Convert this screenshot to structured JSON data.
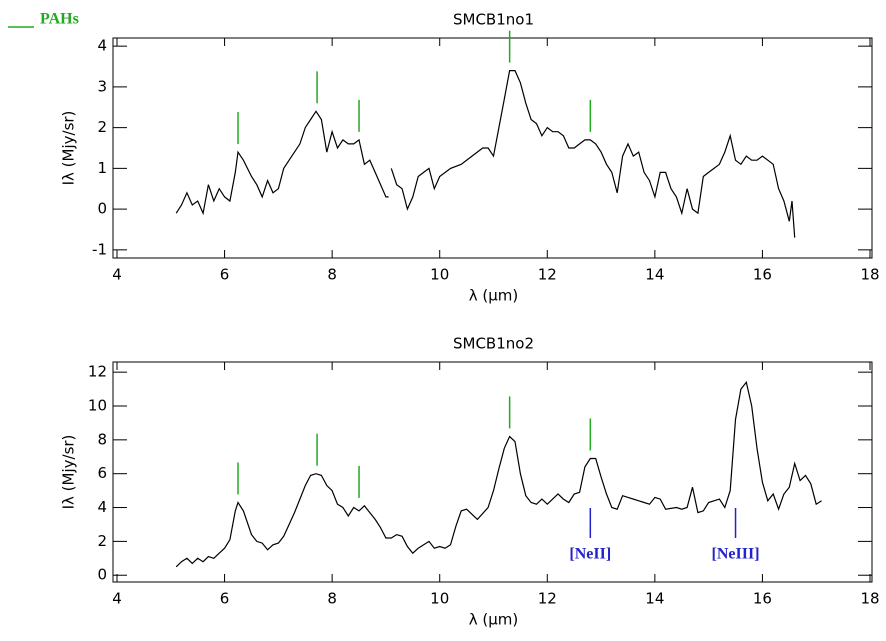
{
  "chart_data": [
    {
      "type": "line",
      "title": "SMCB1no1",
      "x_label": "λ (μm)",
      "y_label": "Iλ (Mjy/sr)",
      "xlim": [
        4,
        18
      ],
      "xticks": [
        4,
        6,
        8,
        10,
        12,
        14,
        16,
        18
      ],
      "ylim": [
        -1.2,
        4.2
      ],
      "yticks": [
        -1,
        0,
        1,
        2,
        3,
        4
      ],
      "pah_label": "PAHs",
      "pah_color": "#22aa22",
      "pah_x": [
        6.25,
        7.72,
        8.5,
        11.3,
        12.8
      ],
      "series": [
        {
          "name": "SMCB1no1",
          "color": "#000000",
          "x": [
            5.1,
            5.2,
            5.3,
            5.4,
            5.5,
            5.6,
            5.7,
            5.8,
            5.9,
            6.0,
            6.1,
            6.2,
            6.25,
            6.35,
            6.5,
            6.6,
            6.7,
            6.8,
            6.9,
            7.0,
            7.1,
            7.2,
            7.3,
            7.4,
            7.5,
            7.6,
            7.7,
            7.8,
            7.9,
            8.0,
            8.1,
            8.2,
            8.3,
            8.4,
            8.5,
            8.6,
            8.7,
            8.8,
            8.9,
            9.0,
            9.05,
            9.1,
            9.1,
            9.2,
            9.3,
            9.4,
            9.5,
            9.6,
            9.7,
            9.8,
            9.9,
            10.0,
            10.2,
            10.4,
            10.6,
            10.8,
            10.9,
            11.0,
            11.1,
            11.2,
            11.3,
            11.4,
            11.5,
            11.6,
            11.7,
            11.8,
            11.9,
            12.0,
            12.1,
            12.2,
            12.3,
            12.4,
            12.5,
            12.6,
            12.7,
            12.8,
            12.9,
            13.0,
            13.1,
            13.2,
            13.3,
            13.4,
            13.5,
            13.6,
            13.7,
            13.8,
            13.9,
            14.0,
            14.1,
            14.2,
            14.3,
            14.4,
            14.5,
            14.6,
            14.7,
            14.8,
            14.9,
            15.0,
            15.1,
            15.2,
            15.3,
            15.4,
            15.5,
            15.6,
            15.7,
            15.8,
            15.9,
            16.0,
            16.1,
            16.2,
            16.3,
            16.4,
            16.5,
            16.55,
            16.6
          ],
          "values": [
            -0.1,
            0.1,
            0.4,
            0.1,
            0.2,
            -0.1,
            0.6,
            0.2,
            0.5,
            0.3,
            0.2,
            0.9,
            1.4,
            1.2,
            0.8,
            0.6,
            0.3,
            0.7,
            0.4,
            0.5,
            1.0,
            1.2,
            1.4,
            1.6,
            2.0,
            2.2,
            2.4,
            2.2,
            1.4,
            1.9,
            1.5,
            1.7,
            1.6,
            1.6,
            1.7,
            1.1,
            1.2,
            0.9,
            0.6,
            0.3,
            0.3,
            null,
            1.0,
            0.6,
            0.5,
            0.0,
            0.3,
            0.8,
            0.9,
            1.0,
            0.5,
            0.8,
            1.0,
            1.1,
            1.3,
            1.5,
            1.5,
            1.3,
            2.0,
            2.7,
            3.4,
            3.4,
            3.1,
            2.6,
            2.2,
            2.1,
            1.8,
            2.0,
            1.9,
            1.9,
            1.8,
            1.5,
            1.5,
            1.6,
            1.7,
            1.7,
            1.6,
            1.4,
            1.1,
            0.9,
            0.4,
            1.3,
            1.6,
            1.3,
            1.4,
            0.9,
            0.7,
            0.3,
            0.9,
            0.9,
            0.5,
            0.3,
            -0.1,
            0.5,
            0.0,
            -0.1,
            0.8,
            0.9,
            1.0,
            1.1,
            1.4,
            1.8,
            1.2,
            1.1,
            1.3,
            1.2,
            1.2,
            1.3,
            1.2,
            1.1,
            0.5,
            0.2,
            -0.3,
            0.2,
            -0.7
          ]
        }
      ]
    },
    {
      "type": "line",
      "title": "SMCB1no2",
      "x_label": "λ (μm)",
      "y_label": "Iλ (Mjy/sr)",
      "xlim": [
        4,
        18
      ],
      "xticks": [
        4,
        6,
        8,
        10,
        12,
        14,
        16,
        18
      ],
      "ylim": [
        -0.4,
        12.6
      ],
      "yticks": [
        0,
        2,
        4,
        6,
        8,
        10,
        12
      ],
      "pah_color": "#22aa22",
      "pah_x": [
        6.25,
        7.72,
        8.5,
        11.3,
        12.8
      ],
      "line_color": "#2222cc",
      "lines": [
        {
          "label": "[NeII]",
          "x": 12.8
        },
        {
          "label": "[NeIII]",
          "x": 15.5
        }
      ],
      "series": [
        {
          "name": "SMCB1no2",
          "color": "#000000",
          "x": [
            5.1,
            5.2,
            5.3,
            5.4,
            5.5,
            5.6,
            5.7,
            5.8,
            5.9,
            6.0,
            6.1,
            6.2,
            6.25,
            6.35,
            6.5,
            6.6,
            6.7,
            6.8,
            6.9,
            7.0,
            7.1,
            7.2,
            7.3,
            7.4,
            7.5,
            7.6,
            7.7,
            7.8,
            7.9,
            8.0,
            8.1,
            8.2,
            8.3,
            8.4,
            8.5,
            8.6,
            8.7,
            8.8,
            8.9,
            9.0,
            9.1,
            9.2,
            9.3,
            9.4,
            9.5,
            9.6,
            9.8,
            9.9,
            10.0,
            10.1,
            10.2,
            10.3,
            10.4,
            10.5,
            10.6,
            10.7,
            10.9,
            11.0,
            11.1,
            11.2,
            11.3,
            11.4,
            11.5,
            11.6,
            11.7,
            11.8,
            11.9,
            12.0,
            12.2,
            12.3,
            12.4,
            12.5,
            12.6,
            12.7,
            12.8,
            12.9,
            13.0,
            13.1,
            13.2,
            13.3,
            13.4,
            13.5,
            13.7,
            13.8,
            13.9,
            14.0,
            14.1,
            14.2,
            14.4,
            14.5,
            14.6,
            14.7,
            14.8,
            14.9,
            15.0,
            15.1,
            15.2,
            15.3,
            15.4,
            15.5,
            15.6,
            15.7,
            15.8,
            15.9,
            16.0,
            16.1,
            16.2,
            16.3,
            16.4,
            16.5,
            16.6,
            16.7,
            16.8,
            16.9,
            17.0,
            17.1
          ],
          "values": [
            0.5,
            0.8,
            1.0,
            0.7,
            1.0,
            0.8,
            1.1,
            1.0,
            1.3,
            1.6,
            2.1,
            3.8,
            4.3,
            3.8,
            2.4,
            2.0,
            1.9,
            1.5,
            1.8,
            1.9,
            2.3,
            3.0,
            3.7,
            4.5,
            5.3,
            5.9,
            6.0,
            5.9,
            5.3,
            5.0,
            4.2,
            4.0,
            3.5,
            4.0,
            3.8,
            4.1,
            3.7,
            3.3,
            2.8,
            2.2,
            2.2,
            2.4,
            2.3,
            1.7,
            1.3,
            1.6,
            2.0,
            1.6,
            1.7,
            1.6,
            1.8,
            2.9,
            3.8,
            3.9,
            3.6,
            3.3,
            4.0,
            5.0,
            6.3,
            7.5,
            8.2,
            7.9,
            6.0,
            4.7,
            4.3,
            4.2,
            4.5,
            4.2,
            4.8,
            4.5,
            4.3,
            4.8,
            4.9,
            6.4,
            6.9,
            6.9,
            5.8,
            4.8,
            4.0,
            3.9,
            4.7,
            4.6,
            4.4,
            4.3,
            4.2,
            4.6,
            4.5,
            3.9,
            4.0,
            3.9,
            4.0,
            5.2,
            3.7,
            3.8,
            4.3,
            4.4,
            4.5,
            4.0,
            5.0,
            9.2,
            11.0,
            11.4,
            10.0,
            7.5,
            5.5,
            4.4,
            4.8,
            3.9,
            4.8,
            5.2,
            6.6,
            5.6,
            5.9,
            5.4,
            4.2,
            4.4
          ]
        }
      ]
    }
  ]
}
